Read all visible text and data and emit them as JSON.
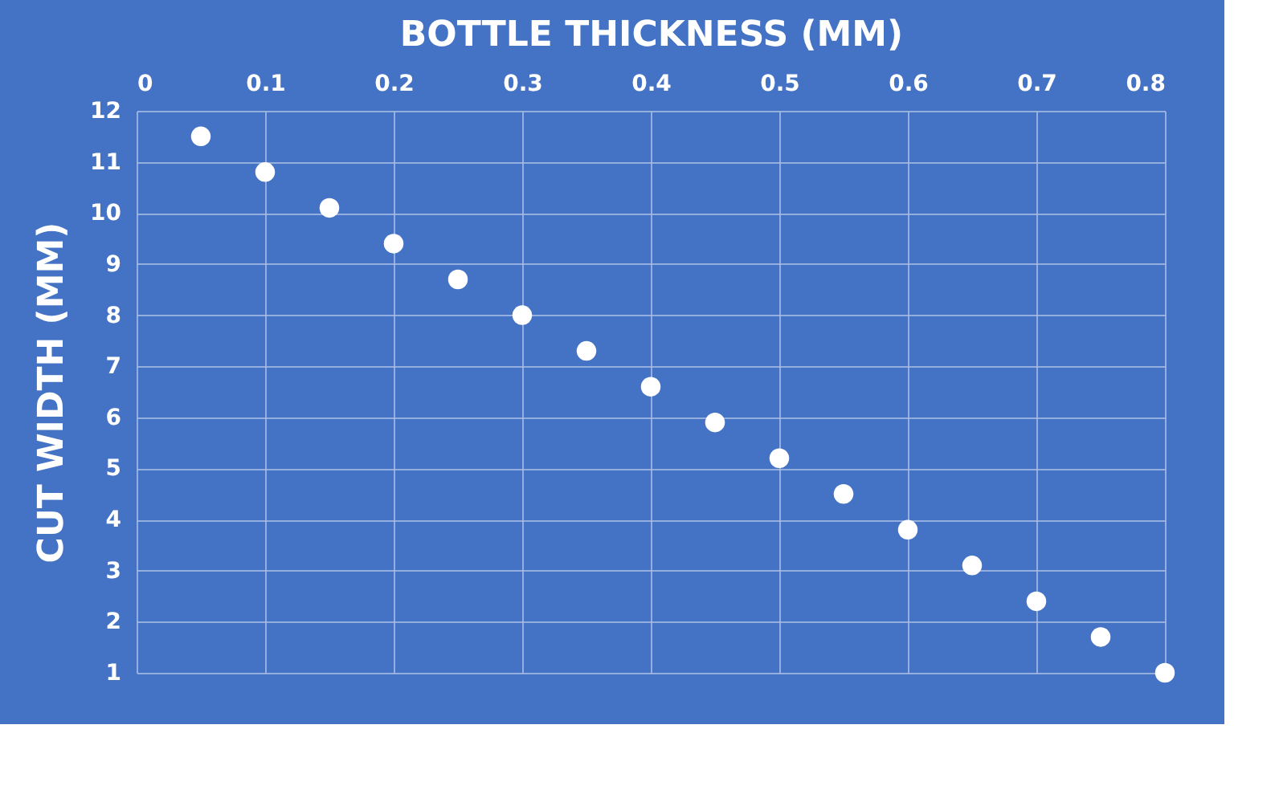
{
  "chart_data": {
    "type": "scatter",
    "xlabel": "BOTTLE THICKNESS (MM)",
    "ylabel": "CUT WIDTH (MM)",
    "x": [
      0.05,
      0.1,
      0.15,
      0.2,
      0.25,
      0.3,
      0.35,
      0.4,
      0.45,
      0.5,
      0.55,
      0.6,
      0.65,
      0.7,
      0.75,
      0.8
    ],
    "series": [
      {
        "color": "#ffffff",
        "values": [
          11.5,
          10.8,
          10.1,
          9.4,
          8.7,
          8.0,
          7.3,
          6.6,
          5.9,
          5.2,
          4.5,
          3.8,
          3.1,
          2.4,
          1.7,
          1.0
        ]
      }
    ],
    "xlim": [
      0,
      0.8
    ],
    "xticks": [
      0,
      0.1,
      0.2,
      0.3,
      0.4,
      0.5,
      0.6,
      0.7,
      0.8
    ],
    "ylim": [
      1,
      12
    ],
    "yticks": [
      1,
      2,
      3,
      4,
      5,
      6,
      7,
      8,
      9,
      10,
      11,
      12
    ],
    "grid": true,
    "marker": "circle",
    "legend": false
  }
}
